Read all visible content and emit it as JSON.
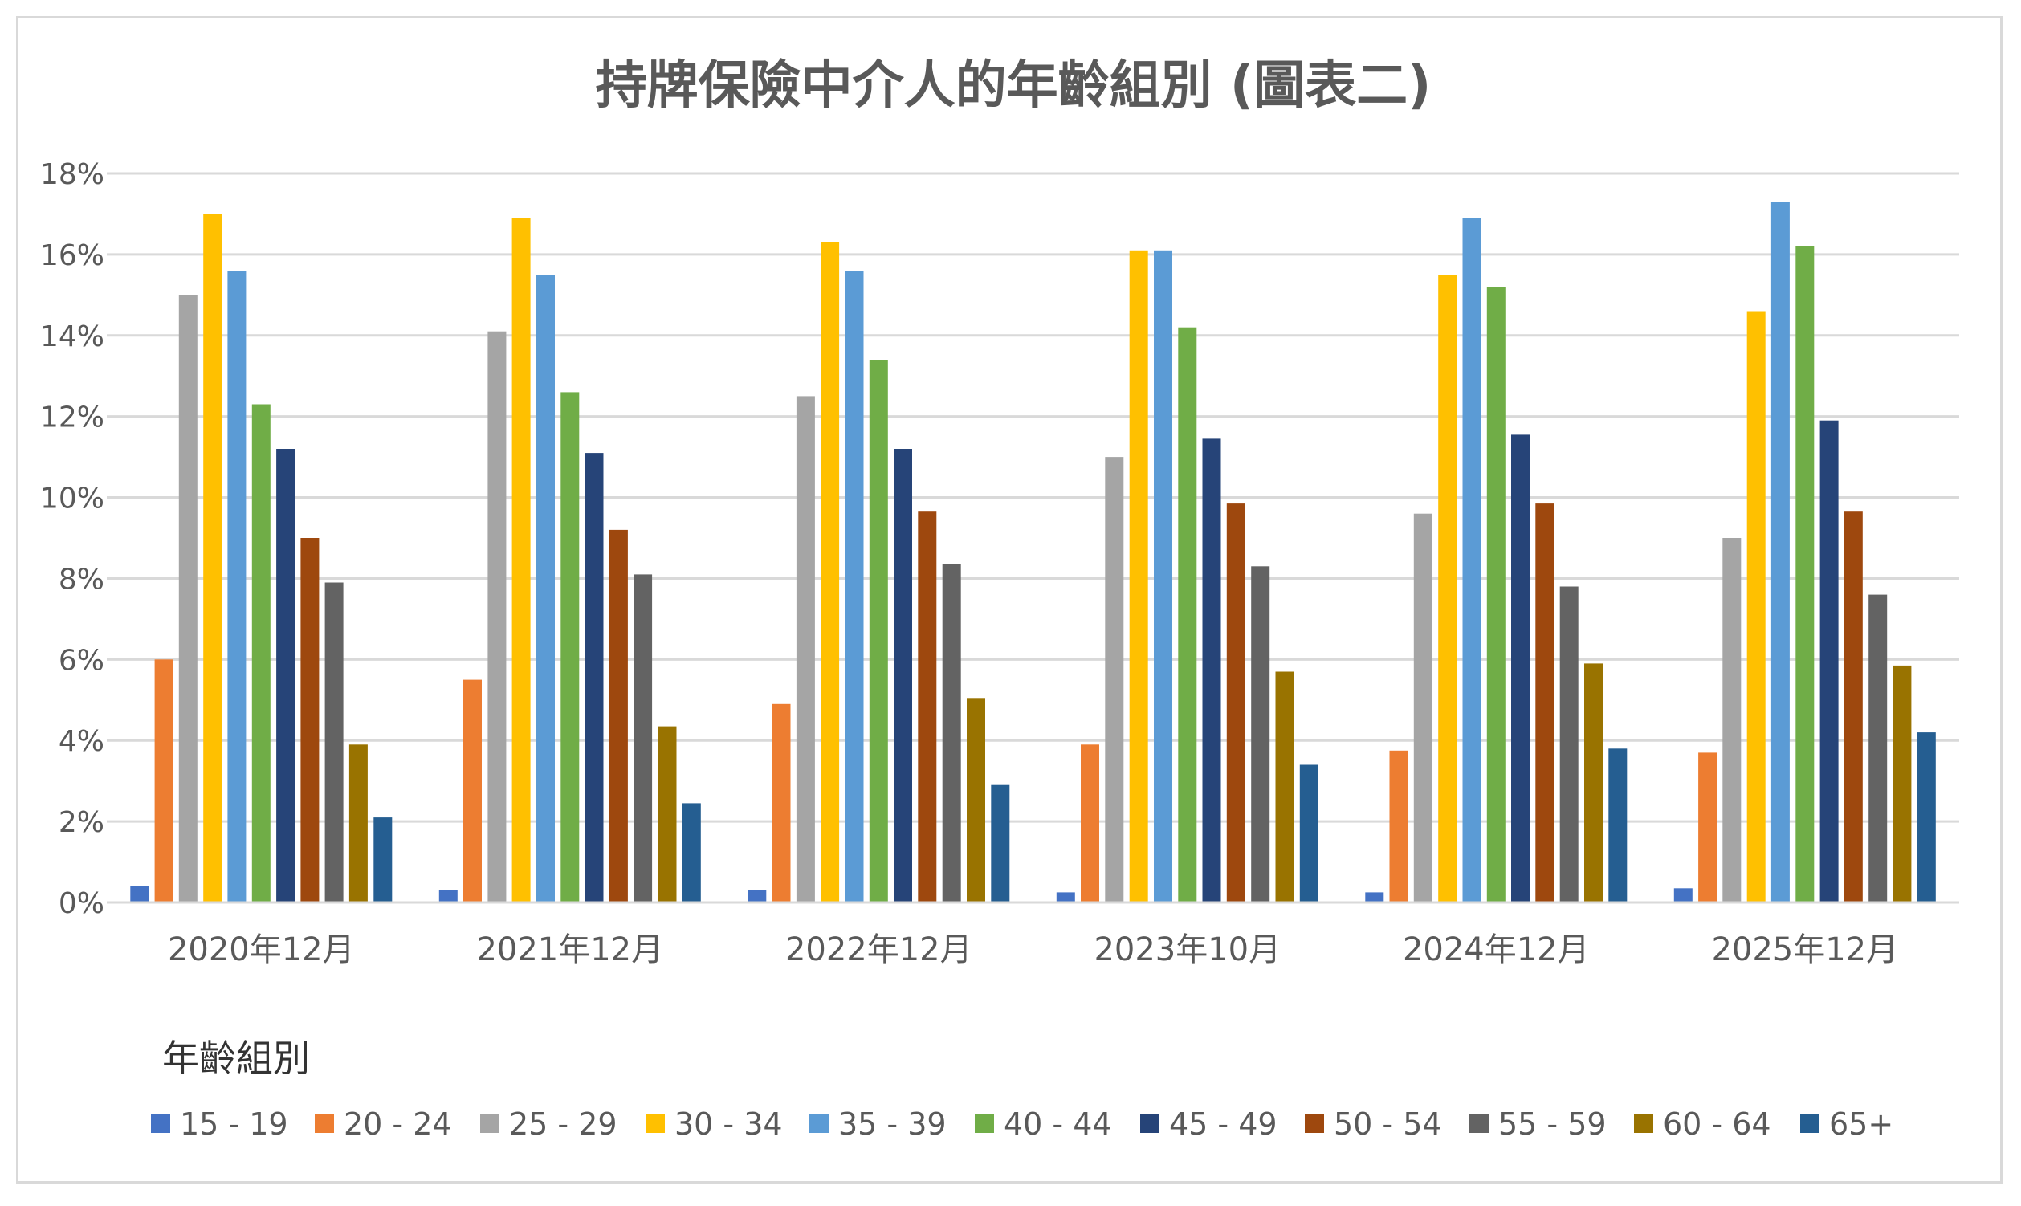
{
  "chart_data": {
    "type": "bar",
    "title": "持牌保險中介人的年齡組別 (圖表二)",
    "categories": [
      "2020年12月",
      "2021年12月",
      "2022年12月",
      "2023年10月",
      "2024年12月",
      "2025年12月"
    ],
    "ylim": [
      0,
      18
    ],
    "yticks": [
      "0%",
      "2%",
      "4%",
      "6%",
      "8%",
      "10%",
      "12%",
      "14%",
      "16%",
      "18%"
    ],
    "ytick_values": [
      0,
      2,
      4,
      6,
      8,
      10,
      12,
      14,
      16,
      18
    ],
    "grid": true,
    "legend_title": "年齡組別",
    "legend_position": "bottom-left",
    "series": [
      {
        "name": "15 - 19",
        "color": "#4472C4",
        "values": [
          0.4,
          0.3,
          0.3,
          0.25,
          0.25,
          0.35
        ]
      },
      {
        "name": "20 - 24",
        "color": "#ED7D31",
        "values": [
          6.0,
          5.5,
          4.9,
          3.9,
          3.75,
          3.7
        ]
      },
      {
        "name": "25 - 29",
        "color": "#A5A5A5",
        "values": [
          15.0,
          14.1,
          12.5,
          11.0,
          9.6,
          9.0
        ]
      },
      {
        "name": "30 - 34",
        "color": "#FFC000",
        "values": [
          17.0,
          16.9,
          16.3,
          16.1,
          15.5,
          14.6
        ]
      },
      {
        "name": "35 - 39",
        "color": "#5B9BD5",
        "values": [
          15.6,
          15.5,
          15.6,
          16.1,
          16.9,
          17.3
        ]
      },
      {
        "name": "40 - 44",
        "color": "#70AD47",
        "values": [
          12.3,
          12.6,
          13.4,
          14.2,
          15.2,
          16.2
        ]
      },
      {
        "name": "45 - 49",
        "color": "#264478",
        "values": [
          11.2,
          11.1,
          11.2,
          11.45,
          11.55,
          11.9
        ]
      },
      {
        "name": "50 - 54",
        "color": "#9E480E",
        "values": [
          9.0,
          9.2,
          9.65,
          9.85,
          9.85,
          9.65
        ]
      },
      {
        "name": "55 - 59",
        "color": "#636363",
        "values": [
          7.9,
          8.1,
          8.35,
          8.3,
          7.8,
          7.6
        ]
      },
      {
        "name": "60 - 64",
        "color": "#997300",
        "values": [
          3.9,
          4.35,
          5.05,
          5.7,
          5.9,
          5.85
        ]
      },
      {
        "name": "65+",
        "color": "#255E91",
        "values": [
          2.1,
          2.45,
          2.9,
          3.4,
          3.8,
          4.2
        ]
      }
    ]
  }
}
